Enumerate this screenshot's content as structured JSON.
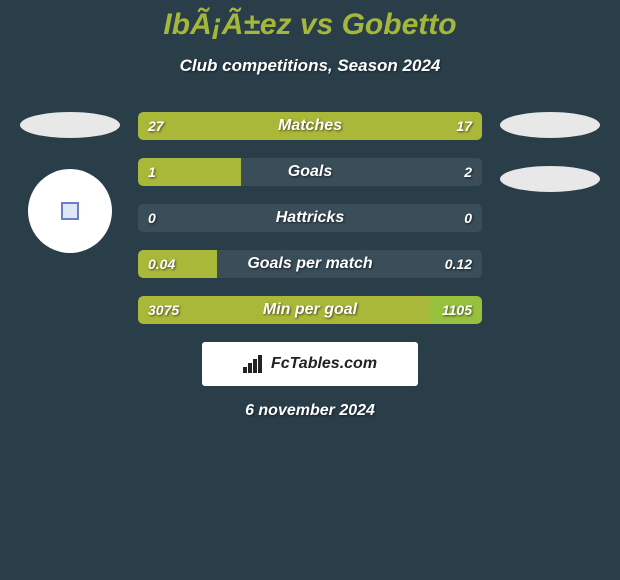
{
  "title": "IbÃ¡Ã±ez vs Gobetto",
  "subtitle": "Club competitions, Season 2024",
  "date": "6 november 2024",
  "logo_text": "FcTables.com",
  "colors": {
    "left_fill": "#aab839",
    "right_fill": "#95c13d",
    "bar_bg": "#3a4e5a",
    "page_bg": "#2a3e4a",
    "title_color": "#a4b73a",
    "text_color": "#ffffff"
  },
  "bars": [
    {
      "label": "Matches",
      "left_val": "27",
      "right_val": "17",
      "left_pct": 100,
      "right_pct": 0
    },
    {
      "label": "Goals",
      "left_val": "1",
      "right_val": "2",
      "left_pct": 30,
      "right_pct": 0
    },
    {
      "label": "Hattricks",
      "left_val": "0",
      "right_val": "0",
      "left_pct": 0,
      "right_pct": 0
    },
    {
      "label": "Goals per match",
      "left_val": "0.04",
      "right_val": "0.12",
      "left_pct": 23,
      "right_pct": 0
    },
    {
      "label": "Min per goal",
      "left_val": "3075",
      "right_val": "1105",
      "left_pct": 85,
      "right_pct": 15
    }
  ],
  "left_side": {
    "ellipse_top": true,
    "avatar": true
  },
  "right_side": {
    "ellipse_top": true,
    "ellipse_bottom": true
  }
}
